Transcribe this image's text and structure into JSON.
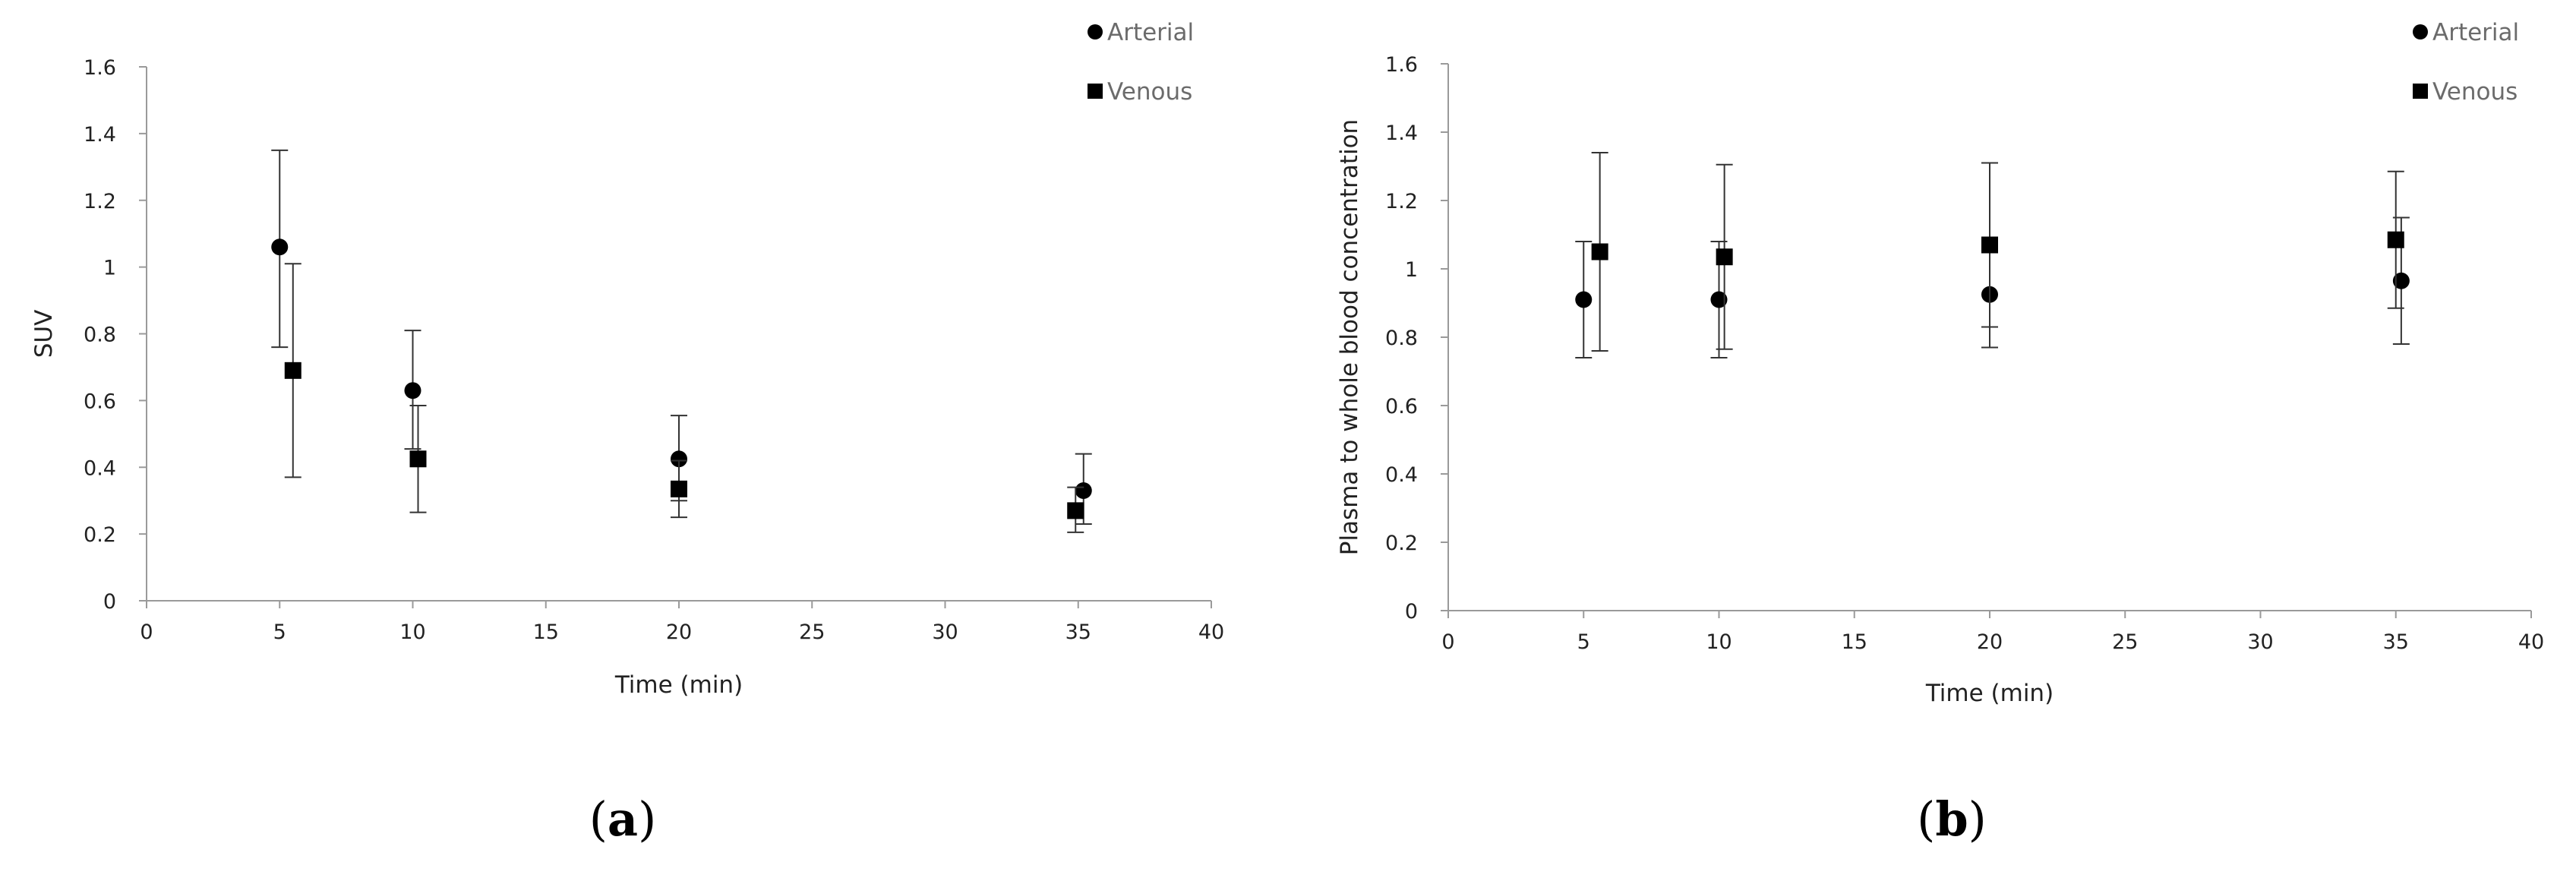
{
  "chart_data": [
    {
      "type": "scatter",
      "panel_label": "(a)",
      "panel_label_parts": {
        "open": "(",
        "letter": "a",
        "close": ")"
      },
      "title": "",
      "xlabel": "Time (min)",
      "ylabel": "SUV",
      "xlim": [
        0,
        40
      ],
      "ylim": [
        0,
        1.6
      ],
      "xticks": [
        "0",
        "5",
        "10",
        "15",
        "20",
        "25",
        "30",
        "35",
        "40"
      ],
      "yticks": [
        "0",
        "0.2",
        "0.4",
        "0.6",
        "0.8",
        "1",
        "1.2",
        "1.4",
        "1.6"
      ],
      "grid": false,
      "legend_position": "top-right",
      "series": [
        {
          "name": "Arterial",
          "marker": "circle",
          "x": [
            5,
            10,
            20,
            35.2
          ],
          "y": [
            1.06,
            0.63,
            0.425,
            0.33
          ],
          "err_low": [
            0.3,
            0.175,
            0.125,
            0.1
          ],
          "err_high": [
            0.29,
            0.18,
            0.13,
            0.11
          ]
        },
        {
          "name": "Venous",
          "marker": "square",
          "x": [
            5.5,
            10.2,
            20,
            34.9
          ],
          "y": [
            0.69,
            0.425,
            0.335,
            0.27
          ],
          "err_low": [
            0.32,
            0.16,
            0.085,
            0.065
          ],
          "err_high": [
            0.32,
            0.16,
            0.085,
            0.07
          ]
        }
      ]
    },
    {
      "type": "scatter",
      "panel_label": "(b)",
      "panel_label_parts": {
        "open": "(",
        "letter": "b",
        "close": ")"
      },
      "title": "",
      "xlabel": "Time (min)",
      "ylabel": "Plasma to whole blood concentration",
      "xlim": [
        0,
        40
      ],
      "ylim": [
        0,
        1.6
      ],
      "xticks": [
        "0",
        "5",
        "10",
        "15",
        "20",
        "25",
        "30",
        "35",
        "40"
      ],
      "yticks": [
        "0",
        "0.2",
        "0.4",
        "0.6",
        "0.8",
        "1",
        "1.2",
        "1.4",
        "1.6"
      ],
      "grid": false,
      "legend_position": "top-right",
      "series": [
        {
          "name": "Arterial",
          "marker": "circle",
          "x": [
            5,
            10,
            20,
            35.2
          ],
          "y": [
            0.91,
            0.91,
            0.925,
            0.965
          ],
          "err_low": [
            0.17,
            0.17,
            0.155,
            0.185
          ],
          "err_high": [
            0.17,
            0.17,
            0.155,
            0.185
          ]
        },
        {
          "name": "Venous",
          "marker": "square",
          "x": [
            5.6,
            10.2,
            20,
            35
          ],
          "y": [
            1.05,
            1.035,
            1.07,
            1.085
          ],
          "err_low": [
            0.29,
            0.27,
            0.24,
            0.2
          ],
          "err_high": [
            0.29,
            0.27,
            0.24,
            0.2
          ]
        }
      ]
    }
  ]
}
